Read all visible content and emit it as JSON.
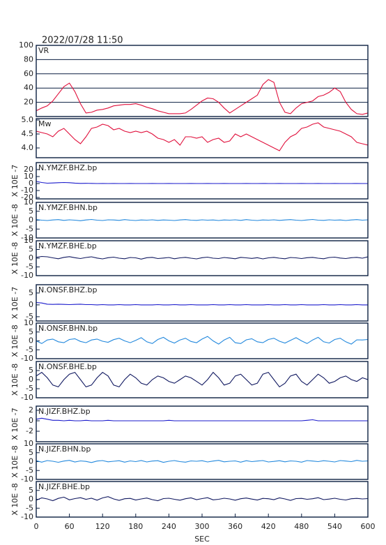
{
  "chart_data": {
    "type": "line",
    "title": "2022/07/28 11:50",
    "xlabel": "SEC",
    "x": [
      0,
      10,
      20,
      30,
      40,
      50,
      60,
      70,
      80,
      90,
      100,
      110,
      120,
      130,
      140,
      150,
      160,
      170,
      180,
      190,
      200,
      210,
      220,
      230,
      240,
      250,
      260,
      270,
      280,
      290,
      300,
      310,
      320,
      330,
      340,
      350,
      360,
      370,
      380,
      390,
      400,
      410,
      420,
      430,
      440,
      450,
      460,
      470,
      480,
      490,
      500,
      510,
      520,
      530,
      540,
      550,
      560,
      570,
      580,
      590,
      600
    ],
    "xlim": [
      0,
      600
    ],
    "xticks": [
      0,
      60,
      120,
      180,
      240,
      300,
      360,
      420,
      480,
      540,
      600
    ],
    "panels": [
      {
        "ylim": [
          0,
          100
        ],
        "yticks": [
          20,
          40,
          60,
          80,
          100
        ],
        "grid": true,
        "series": [
          {
            "name": "VR",
            "color": "#e0103c",
            "values": [
              8,
              12,
              15,
              22,
              32,
              42,
              47,
              35,
              18,
              5,
              6,
              9,
              10,
              12,
              15,
              16,
              17,
              17,
              18,
              16,
              13,
              11,
              8,
              6,
              4,
              4,
              4,
              5,
              10,
              16,
              22,
              26,
              25,
              20,
              12,
              5,
              10,
              15,
              20,
              25,
              30,
              45,
              52,
              48,
              20,
              6,
              4,
              12,
              18,
              20,
              22,
              28,
              30,
              34,
              40,
              35,
              20,
              10,
              4,
              3,
              5
            ]
          }
        ]
      },
      {
        "ylim": [
          3.65,
          5.05
        ],
        "yticks": [
          {
            "value": 5,
            "label": "5.0"
          },
          4.5,
          {
            "value": 4,
            "label": "4.0"
          }
        ],
        "grid": false,
        "series": [
          {
            "name": "Mw",
            "color": "#e0103c",
            "values": [
              4.6,
              4.55,
              4.5,
              4.4,
              4.6,
              4.7,
              4.5,
              4.3,
              4.15,
              4.4,
              4.7,
              4.75,
              4.85,
              4.8,
              4.65,
              4.7,
              4.6,
              4.55,
              4.6,
              4.55,
              4.6,
              4.5,
              4.35,
              4.3,
              4.2,
              4.3,
              4.1,
              4.4,
              4.4,
              4.35,
              4.4,
              4.2,
              4.3,
              4.35,
              4.2,
              4.25,
              4.5,
              4.4,
              4.5,
              4.4,
              4.3,
              4.2,
              4.1,
              4.0,
              3.9,
              4.2,
              4.4,
              4.5,
              4.7,
              4.75,
              4.85,
              4.9,
              4.75,
              4.7,
              4.65,
              4.6,
              4.5,
              4.4,
              4.2,
              4.15,
              4.1
            ]
          }
        ]
      },
      {
        "ylabel": "X 10E -7",
        "ylim": [
          -22,
          30
        ],
        "yticks": [
          20,
          10,
          0,
          -10,
          -20
        ],
        "grid": false,
        "series": [
          {
            "name": "N.YMZF.BHZ.bp",
            "color": "#1a1acc",
            "values": [
              3,
              1.5,
              0.5,
              0.8,
              1.2,
              1.5,
              1.2,
              0.6,
              0.2,
              0.3,
              0.2,
              0,
              0.1,
              0,
              0.1,
              0,
              0,
              0.1,
              0,
              0,
              0,
              0.1,
              0,
              0,
              0.1,
              0,
              0,
              0,
              0.1,
              0,
              0,
              0.1,
              0,
              0,
              0.1,
              0,
              0,
              0,
              0.1,
              0,
              0,
              0.1,
              0,
              0,
              0.1,
              0,
              0,
              0,
              0.1,
              0,
              0,
              0.1,
              0,
              0,
              0.1,
              0,
              0,
              0,
              0.1,
              0,
              0
            ]
          }
        ]
      },
      {
        "ylabel": "X 10E -8",
        "ylim": [
          -10,
          10
        ],
        "yticks": [
          10,
          5,
          0,
          -5,
          -10
        ],
        "grid": false,
        "series": [
          {
            "name": "N.YMZF.BHN.bp",
            "color": "#2288dd",
            "values": [
              0.3,
              0,
              -0.2,
              0.1,
              0.3,
              -0.1,
              0.2,
              0,
              -0.3,
              0.1,
              0.4,
              0,
              -0.2,
              0.2,
              0.1,
              -0.1,
              0.3,
              0,
              -0.2,
              0.1,
              0,
              0.2,
              -0.1,
              0.1,
              0,
              -0.2,
              0.1,
              0.3,
              0,
              -0.1,
              0.2,
              0,
              0.1,
              -0.2,
              0.1,
              0,
              0.2,
              -0.1,
              0.3,
              0,
              -0.2,
              0.1,
              0,
              0.2,
              -0.1,
              0.1,
              0.3,
              0,
              -0.2,
              0.1,
              0.4,
              0,
              -0.1,
              0.2,
              0,
              0.1,
              -0.2,
              0.1,
              0.3,
              0,
              0.2
            ]
          }
        ]
      },
      {
        "ylabel": "X 10E -8",
        "ylim": [
          -10,
          10
        ],
        "yticks": [
          10,
          5,
          0,
          -5,
          -10
        ],
        "grid": false,
        "series": [
          {
            "name": "N.YMZF.BHE.bp",
            "color": "#101860",
            "values": [
              0.5,
              1,
              0.8,
              0.2,
              -0.3,
              0.5,
              0.9,
              0.3,
              -0.2,
              0.4,
              0.8,
              0.1,
              -0.4,
              0.3,
              0.6,
              0,
              -0.3,
              0.4,
              0.2,
              -0.5,
              0.3,
              0.5,
              -0.2,
              0.1,
              0.4,
              -0.3,
              0.2,
              0.5,
              0,
              -0.4,
              0.3,
              0.6,
              0,
              -0.2,
              0.4,
              0.1,
              -0.3,
              0.5,
              0.2,
              -0.1,
              0.3,
              -0.4,
              0.2,
              0.5,
              0,
              -0.3,
              0.4,
              0.2,
              -0.2,
              0.3,
              0.5,
              0,
              -0.3,
              0.4,
              0.6,
              0.1,
              -0.2,
              0.3,
              0.5,
              0,
              0.8
            ]
          }
        ]
      },
      {
        "ylabel": "X 10E -7",
        "ylim": [
          -6.8,
          8.5
        ],
        "yticks": [
          5,
          0,
          -5
        ],
        "grid": false,
        "series": [
          {
            "name": "N.ONSF.BHZ.bp",
            "color": "#1a1acc",
            "values": [
              1,
              0.8,
              0.3,
              0.2,
              0.3,
              0.2,
              0.1,
              0.2,
              0.3,
              0.1,
              0.1,
              0,
              0.1,
              0,
              0,
              0.1,
              0,
              0,
              0.1,
              0,
              0,
              0,
              0.1,
              0,
              0,
              0.1,
              0,
              0,
              0.1,
              0,
              0,
              0,
              0.1,
              0,
              0,
              0.1,
              0,
              0,
              0.1,
              0,
              0,
              0,
              0.1,
              0,
              0,
              0.1,
              0,
              0,
              0.1,
              0,
              0,
              0,
              0.1,
              0,
              0,
              0.1,
              0,
              0,
              0.1,
              0,
              0
            ]
          }
        ]
      },
      {
        "ylabel": "X 10E -8",
        "ylim": [
          -10,
          10
        ],
        "yticks": [
          10,
          5,
          0,
          -5,
          -10
        ],
        "grid": false,
        "series": [
          {
            "name": "N.ONSF.BHN.bp",
            "color": "#2288dd",
            "values": [
              0,
              -1.5,
              0.5,
              1,
              -0.5,
              -1,
              0.8,
              1.2,
              -0.3,
              -1,
              0.5,
              1,
              -0.2,
              -0.8,
              0.7,
              1.5,
              0,
              -1,
              0.3,
              1.8,
              -0.5,
              -1.5,
              0.8,
              2,
              0,
              -1.2,
              0.5,
              1.5,
              -0.3,
              -1,
              1,
              2.5,
              0,
              -1.8,
              0.5,
              2,
              -1,
              -1.5,
              0.6,
              1.2,
              -0.5,
              -1,
              0.8,
              1.5,
              -0.2,
              -1.2,
              0.3,
              1.8,
              0,
              -1.5,
              0.5,
              2,
              -0.5,
              -1.2,
              0.8,
              1.5,
              -0.5,
              -1.8,
              0.6,
              0.5,
              0.8
            ]
          }
        ]
      },
      {
        "ylabel": "X 10E -8",
        "ylim": [
          -10,
          10
        ],
        "yticks": [
          5,
          0,
          -5,
          -10
        ],
        "grid": false,
        "series": [
          {
            "name": "N.ONSF.BHE.bp",
            "color": "#101860",
            "values": [
              2,
              4,
              1,
              -3,
              -4,
              0,
              3,
              4,
              0,
              -4,
              -3,
              1,
              4,
              2,
              -3,
              -4,
              0,
              3,
              1,
              -2,
              -3,
              0,
              2,
              1,
              -1,
              -2,
              0,
              2,
              1,
              -1,
              -3,
              0,
              4,
              1,
              -3,
              -2,
              2,
              3,
              0,
              -3,
              -2,
              3,
              4,
              0,
              -4,
              -2,
              2,
              3,
              -1,
              -3,
              0,
              3,
              1,
              -2,
              -1,
              1,
              2,
              0,
              -1,
              1,
              0
            ]
          }
        ]
      },
      {
        "ylabel": "X 10E -7",
        "ylim": [
          -4,
          2.8
        ],
        "yticks": [
          2,
          0,
          -2
        ],
        "grid": false,
        "series": [
          {
            "name": "N.JIZF.BHZ.bp",
            "color": "#1a1acc",
            "values": [
              0.3,
              0.5,
              0.3,
              0.1,
              0.1,
              0,
              0.1,
              0,
              0,
              0.1,
              0,
              0,
              0,
              0.1,
              0,
              0,
              0,
              0,
              0,
              0,
              0,
              0,
              0,
              0,
              0.1,
              0,
              0,
              0,
              0,
              0,
              0,
              0,
              0,
              0,
              0,
              0,
              0,
              0,
              0,
              0,
              0,
              0,
              0,
              0,
              0,
              0,
              0,
              0,
              0,
              0.1,
              0.2,
              0,
              0,
              0,
              0,
              0,
              0,
              0,
              0,
              0,
              0
            ]
          }
        ]
      },
      {
        "ylabel": "X 10E -8",
        "ylim": [
          -10,
          10
        ],
        "yticks": [
          10,
          5,
          0,
          -5,
          -10
        ],
        "grid": false,
        "series": [
          {
            "name": "N.JIZF.BHN.bp",
            "color": "#2288dd",
            "values": [
              0.5,
              -0.3,
              0.6,
              0.2,
              -0.4,
              0.3,
              0.7,
              -0.2,
              0.4,
              0.1,
              -0.5,
              0.3,
              0.6,
              -0.1,
              0.2,
              0.5,
              -0.3,
              0.4,
              0,
              0.6,
              -0.2,
              0.3,
              0.5,
              -0.4,
              0.2,
              0.6,
              0,
              -0.3,
              0.4,
              0.2,
              0.5,
              -0.2,
              0.3,
              0.7,
              -0.1,
              0.2,
              0.4,
              -0.3,
              0.5,
              0,
              0.3,
              0.6,
              -0.2,
              0.1,
              0.5,
              -0.1,
              0.4,
              0.2,
              -0.3,
              0.6,
              0.3,
              0,
              0.5,
              0.2,
              -0.2,
              0.6,
              0.3,
              0,
              0.7,
              0.2,
              0.4
            ]
          }
        ]
      },
      {
        "ylabel": "X 10E -8",
        "ylim": [
          -10,
          10
        ],
        "yticks": [
          5,
          0,
          -5,
          -10
        ],
        "grid": false,
        "series": [
          {
            "name": "N.JIZF.BHE.bp",
            "color": "#101860",
            "values": [
              -0.5,
              0.8,
              0.2,
              -0.8,
              0.5,
              1.2,
              -0.3,
              0.4,
              0.9,
              0,
              0.6,
              -0.5,
              0.8,
              1.5,
              0.2,
              -0.6,
              0.3,
              0.5,
              -0.4,
              0.2,
              0.7,
              -0.2,
              -0.8,
              0.4,
              0.6,
              0,
              -0.5,
              0.3,
              0.8,
              -0.2,
              0.4,
              0.9,
              -0.3,
              0,
              0.6,
              0.2,
              -0.5,
              0.3,
              0.7,
              0.1,
              -0.4,
              0.5,
              0.3,
              -0.2,
              0.8,
              0.2,
              -0.6,
              0.4,
              0.5,
              0,
              0.3,
              0.9,
              -0.2,
              0.1,
              0.6,
              0,
              -0.4,
              0.3,
              0.5,
              0.2,
              0.4
            ]
          }
        ]
      }
    ]
  }
}
